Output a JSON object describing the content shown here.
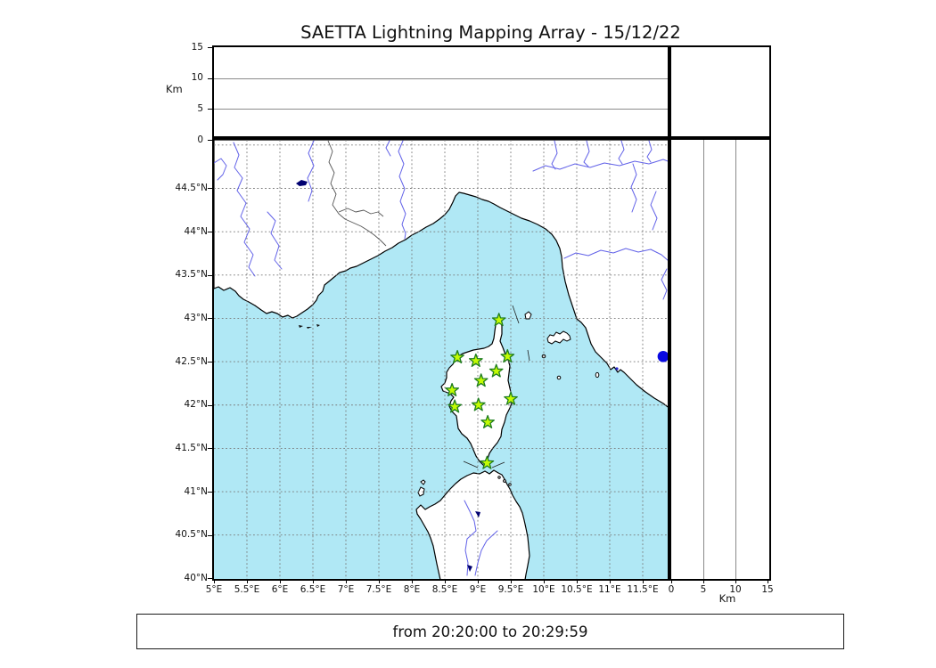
{
  "title": "SAETTA Lightning Mapping Array - 15/12/22",
  "footer": "from 20:20:00 to 20:29:59",
  "axes": {
    "altitude_label_left": "Km",
    "altitude_label_right": "Km",
    "altitude_ticks_top": [
      "0",
      "5",
      "10",
      "15"
    ],
    "altitude_ticks_right": [
      "0",
      "5",
      "10",
      "15"
    ],
    "longitude_ticks": [
      "5°E",
      "5.5°E",
      "6°E",
      "6.5°E",
      "7°E",
      "7.5°E",
      "8°E",
      "8.5°E",
      "9°E",
      "9.5°E",
      "10°E",
      "10.5°E",
      "11°E",
      "11.5°E"
    ],
    "latitude_ticks": [
      "44.5°N",
      "44°N",
      "43.5°N",
      "43°N",
      "42.5°N",
      "42°N",
      "41.5°N",
      "41°N",
      "40.5°N",
      "40°N"
    ]
  },
  "stations": [
    {
      "lon": 9.32,
      "lat": 42.98
    },
    {
      "lon": 8.69,
      "lat": 42.55
    },
    {
      "lon": 8.97,
      "lat": 42.51
    },
    {
      "lon": 9.45,
      "lat": 42.56
    },
    {
      "lon": 9.28,
      "lat": 42.39
    },
    {
      "lon": 9.05,
      "lat": 42.28
    },
    {
      "lon": 8.61,
      "lat": 42.17
    },
    {
      "lon": 9.5,
      "lat": 42.07
    },
    {
      "lon": 9.01,
      "lat": 42.0
    },
    {
      "lon": 8.65,
      "lat": 41.98
    },
    {
      "lon": 9.15,
      "lat": 41.8
    },
    {
      "lon": 9.14,
      "lat": 41.33
    }
  ],
  "last_point": {
    "lon": 11.81,
    "lat": 42.56
  },
  "colors": {
    "sea": "#b0e8f5",
    "land": "#ffffff",
    "coast": "#000000",
    "grid": "#787878",
    "river": "#6262e8",
    "lake": "#000070",
    "station_fill": "#c3fb04",
    "station_stroke": "#1e7d1e",
    "dot": "#0a0ae2"
  },
  "chart_data": {
    "type": "scatter",
    "title": "SAETTA Lightning Mapping Array - 15/12/22",
    "subtitle": "from 20:20:00 to 20:29:59",
    "panels": [
      {
        "name": "altitude-vs-longitude",
        "ylabel": "Km",
        "ylim": [
          0,
          15
        ],
        "yticks": [
          0,
          5,
          10,
          15
        ],
        "grid": true,
        "points": []
      },
      {
        "name": "altitude-histogram",
        "points": []
      },
      {
        "name": "map",
        "xlabel_ticks_deg_E": [
          5,
          5.5,
          6,
          6.5,
          7,
          7.5,
          8,
          8.5,
          9,
          9.5,
          10,
          10.5,
          11,
          11.5
        ],
        "ylabel_ticks_deg_N": [
          40,
          40.5,
          41,
          41.5,
          42,
          42.5,
          43,
          43.5,
          44,
          44.5
        ],
        "xlim": [
          5,
          11.92
        ],
        "ylim": [
          40,
          45.06
        ],
        "grid": "dashed"
      },
      {
        "name": "altitude-vs-latitude",
        "xlabel": "Km",
        "xlim": [
          0,
          15
        ],
        "xticks": [
          0,
          5,
          10,
          15
        ],
        "grid": true,
        "points": []
      }
    ],
    "series": [
      {
        "name": "lma-stations",
        "marker": "star",
        "color": "#c3fb04",
        "x": [
          9.32,
          8.69,
          8.97,
          9.45,
          9.28,
          9.05,
          8.61,
          9.5,
          9.01,
          8.65,
          9.15,
          9.14
        ],
        "y": [
          42.98,
          42.55,
          42.51,
          42.56,
          42.39,
          42.28,
          42.17,
          42.07,
          42.0,
          41.98,
          41.8,
          41.33
        ]
      },
      {
        "name": "recent-source",
        "marker": "circle",
        "color": "#0a0ae2",
        "x": [
          11.81
        ],
        "y": [
          42.56
        ]
      }
    ]
  }
}
